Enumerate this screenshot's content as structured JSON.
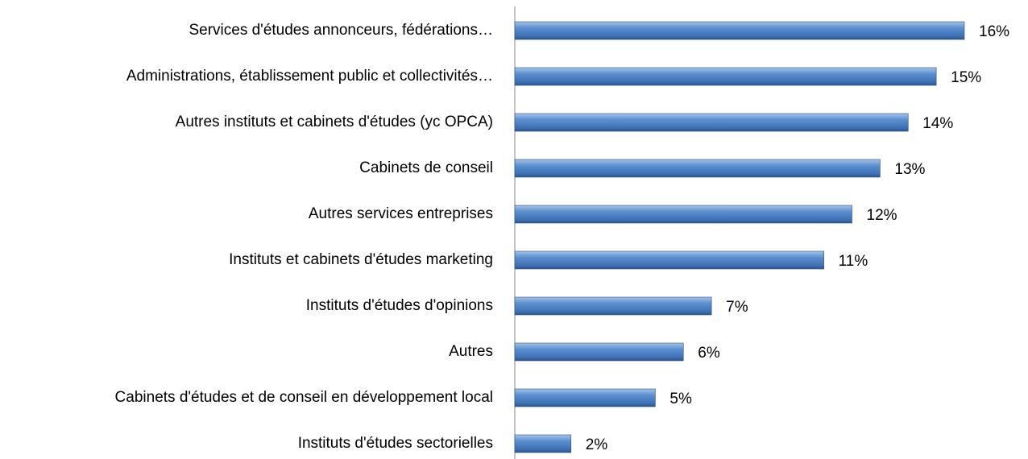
{
  "chart_data": {
    "type": "bar",
    "orientation": "horizontal",
    "categories": [
      "Services d'études annonceurs, fédérations…",
      "Administrations, établissement public et collectivités…",
      "Autres instituts et cabinets d'études (yc OPCA)",
      "Cabinets de conseil",
      "Autres services entreprises",
      "Instituts et cabinets d'études marketing",
      "Instituts d'études d'opinions",
      "Autres",
      "Cabinets d'études et de conseil en développement local",
      "Instituts d'études sectorielles"
    ],
    "values": [
      16,
      15,
      14,
      13,
      12,
      11,
      7,
      6,
      5,
      2
    ],
    "value_labels": [
      "16%",
      "15%",
      "14%",
      "13%",
      "12%",
      "11%",
      "7%",
      "6%",
      "5%",
      "2%"
    ],
    "color": "#4f81bd"
  }
}
